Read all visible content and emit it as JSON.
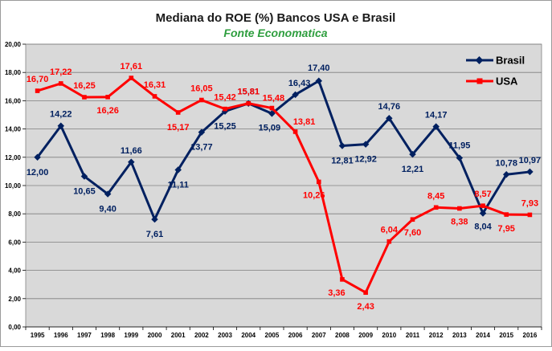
{
  "chart_data": {
    "type": "line",
    "title": "Mediana do ROE  (%) Bancos USA e Brasil",
    "subtitle": "Fonte Economatica",
    "xlabel": "",
    "ylabel": "",
    "ylim": [
      0,
      20
    ],
    "y_ticks": [
      "0,00",
      "2,00",
      "4,00",
      "6,00",
      "8,00",
      "10,00",
      "12,00",
      "14,00",
      "16,00",
      "18,00",
      "20,00"
    ],
    "categories": [
      "1995",
      "1996",
      "1997",
      "1998",
      "1999",
      "2000",
      "2001",
      "2002",
      "2003",
      "2004",
      "2005",
      "2006",
      "2007",
      "2008",
      "2009",
      "2010",
      "2011",
      "2012",
      "2013",
      "2014",
      "2015",
      "2016"
    ],
    "grid": true,
    "legend": "top-right",
    "series": [
      {
        "name": "Brasil",
        "color": "#002060",
        "values": [
          12.0,
          14.22,
          10.65,
          9.4,
          11.66,
          7.61,
          11.11,
          13.77,
          15.25,
          15.81,
          15.09,
          16.43,
          17.4,
          12.81,
          12.92,
          14.76,
          12.21,
          14.17,
          11.95,
          8.04,
          10.78,
          10.97
        ],
        "labels": [
          "12,00",
          "14,22",
          "10,65",
          "9,40",
          "11,66",
          "7,61",
          "11,11",
          "13,77",
          "15,25",
          "15,81",
          "15,09",
          "16,43",
          "17,40",
          "12,81",
          "12,92",
          "14,76",
          "12,21",
          "14,17",
          "11,95",
          "8,04",
          "10,78",
          "10,97"
        ]
      },
      {
        "name": "USA",
        "color": "#ff0000",
        "values": [
          16.7,
          17.22,
          16.25,
          16.26,
          17.61,
          16.31,
          15.17,
          16.05,
          15.42,
          15.81,
          15.48,
          13.81,
          10.26,
          3.36,
          2.43,
          6.04,
          7.6,
          8.45,
          8.38,
          8.57,
          7.95,
          7.93
        ],
        "labels": [
          "16,70",
          "17,22",
          "16,25",
          "16,26",
          "17,61",
          "16,31",
          "15,17",
          "16,05",
          "15,42",
          "15,81",
          "15,48",
          "13,81",
          "10,26",
          "3,36",
          "2,43",
          "6,04",
          "7,60",
          "8,45",
          "8,38",
          "8,57",
          "7,95",
          "7,93"
        ]
      }
    ]
  }
}
